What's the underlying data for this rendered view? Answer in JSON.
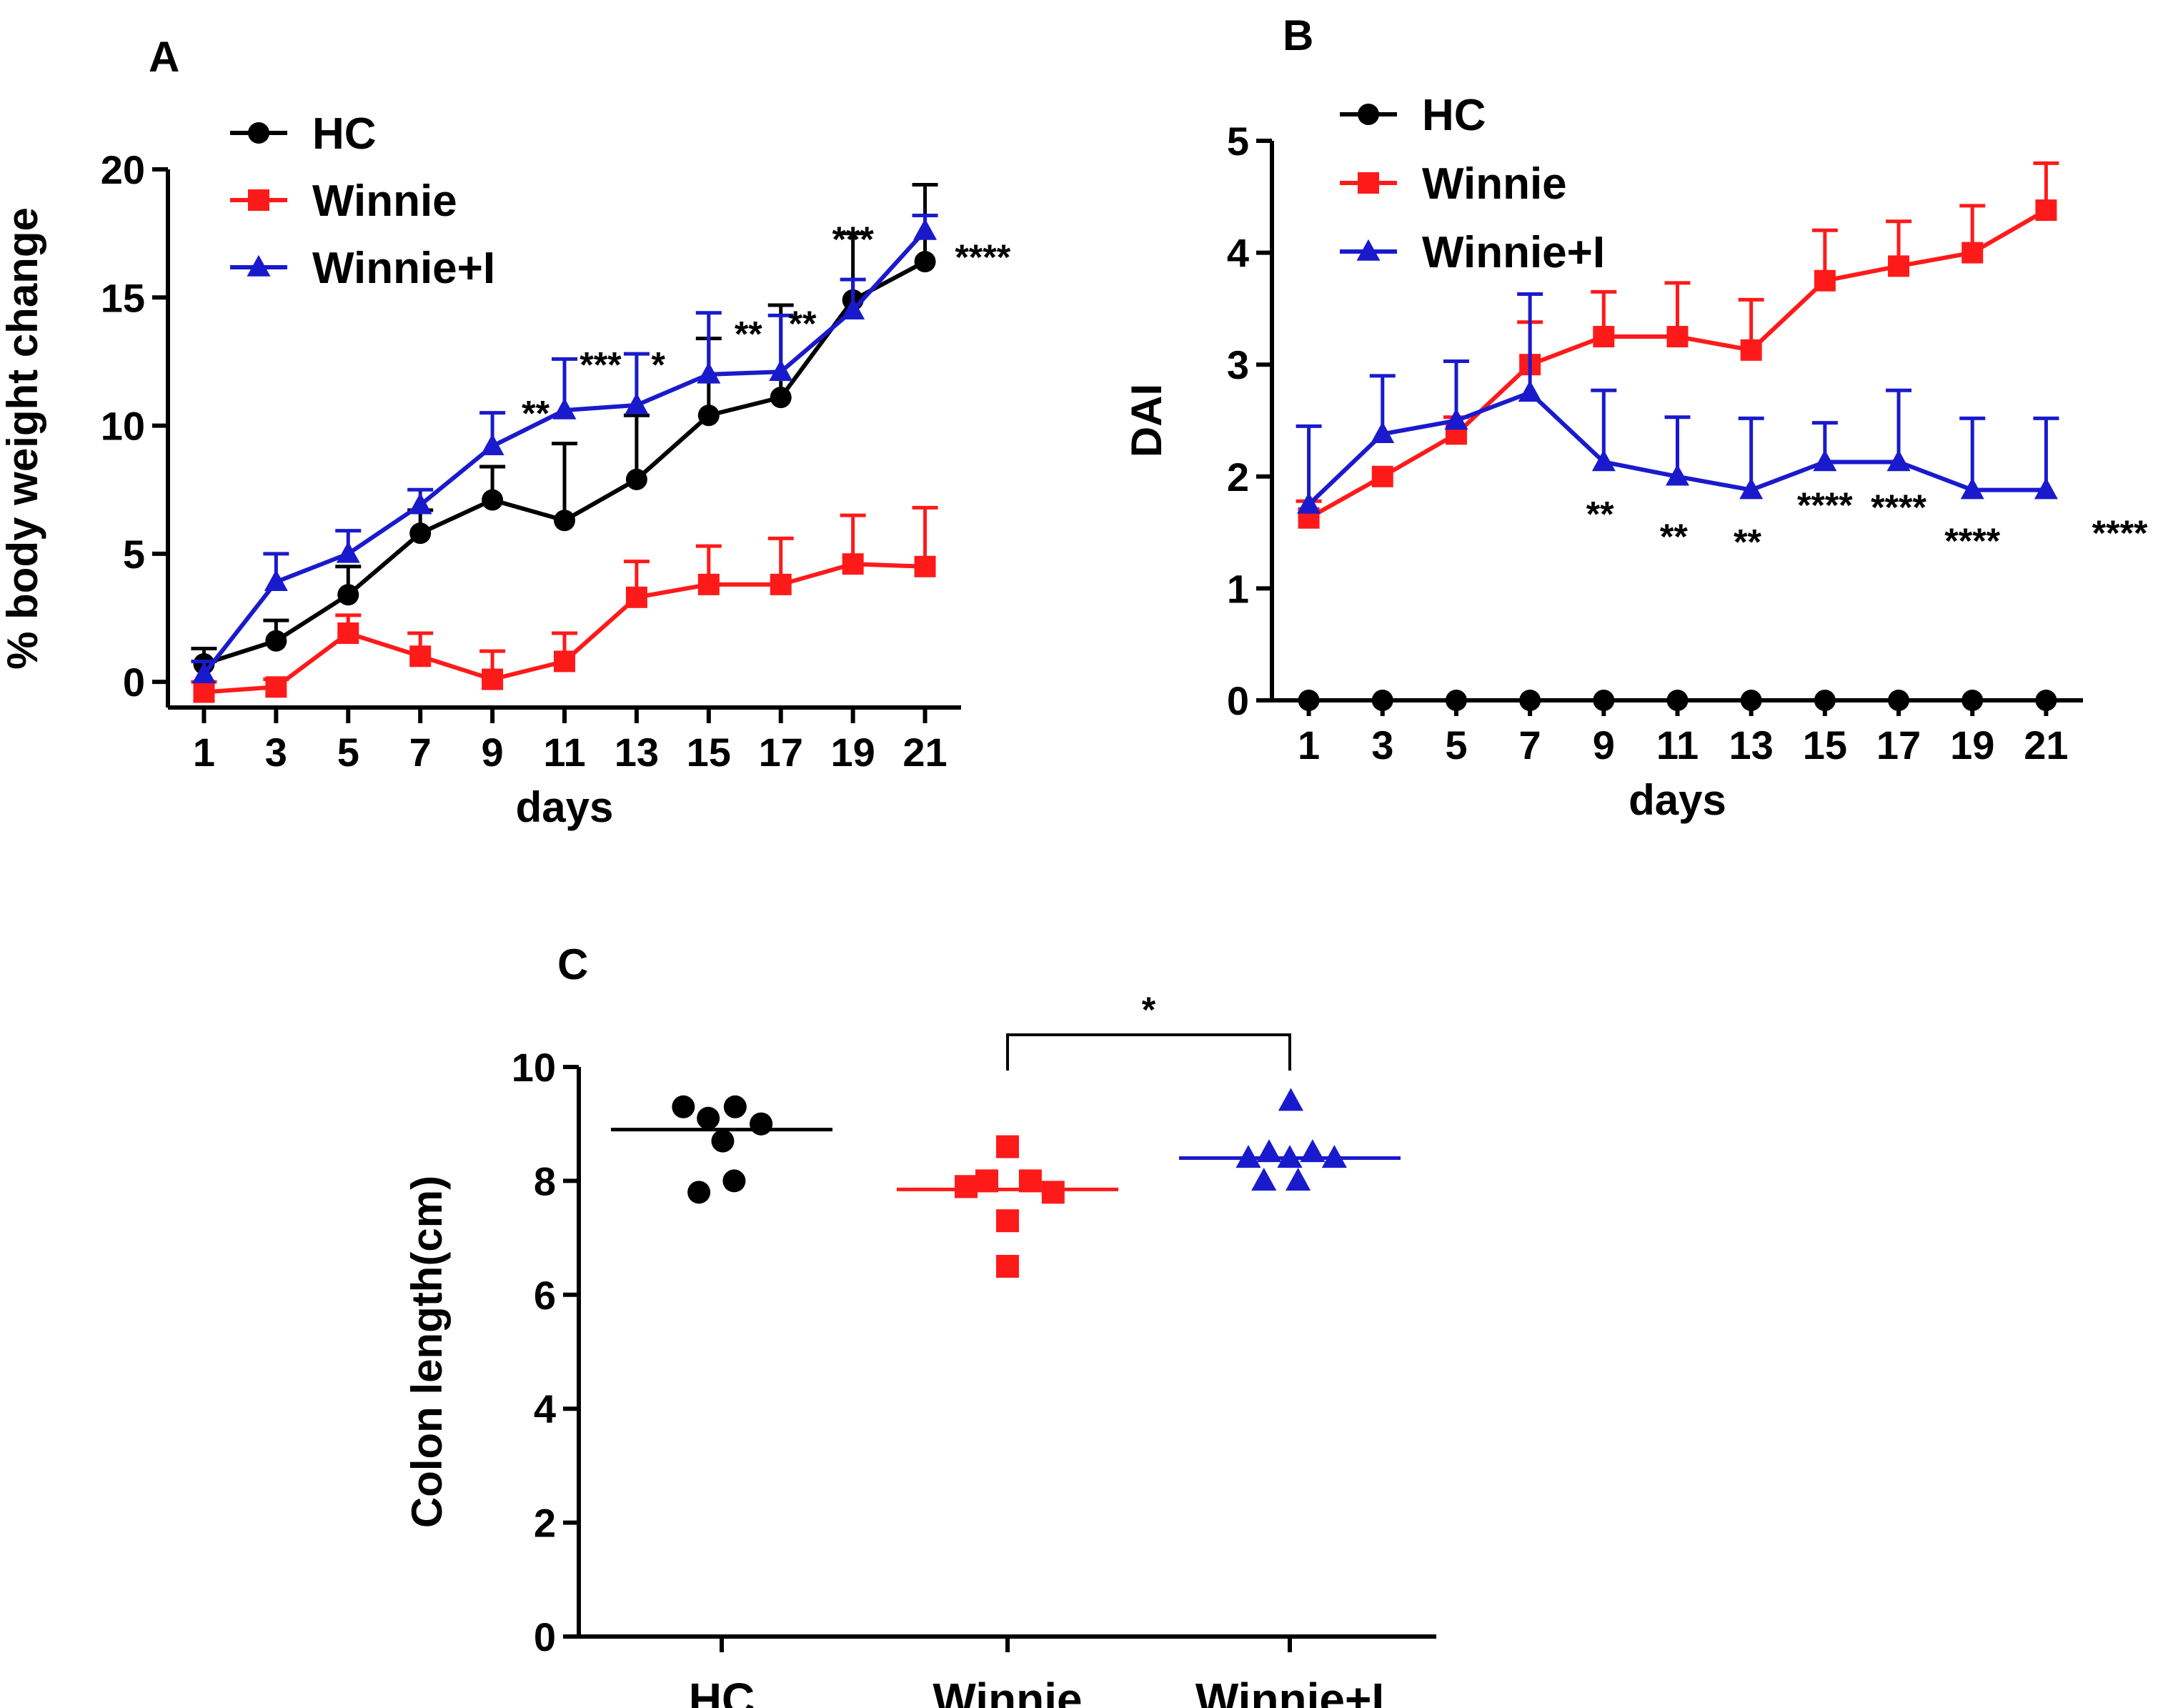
{
  "chart_data": [
    {
      "panel": "A",
      "type": "line",
      "xlabel": "days",
      "ylabel": "% body weight change",
      "x": [
        1,
        3,
        5,
        7,
        9,
        11,
        13,
        15,
        17,
        19,
        21
      ],
      "xticks": [
        "1",
        "3",
        "5",
        "7",
        "9",
        "11",
        "13",
        "15",
        "17",
        "19",
        "21"
      ],
      "xlim": [
        0,
        22
      ],
      "ylim": [
        -1,
        20
      ],
      "yticks": [
        "0",
        "5",
        "10",
        "15",
        "20"
      ],
      "series": [
        {
          "name": "HC",
          "color": "#000000",
          "marker": "circle",
          "values": [
            0.7,
            1.6,
            3.4,
            5.8,
            7.1,
            6.3,
            7.9,
            10.4,
            11.1,
            14.9,
            16.4
          ],
          "errors": [
            0.6,
            0.8,
            1.1,
            0.9,
            1.3,
            3.0,
            2.5,
            3.0,
            3.6,
            2.6,
            3.0
          ]
        },
        {
          "name": "Winnie",
          "color": "#ff1a1a",
          "marker": "square",
          "values": [
            -0.4,
            -0.2,
            1.9,
            1.0,
            0.1,
            0.8,
            3.3,
            3.8,
            3.8,
            4.6,
            4.5
          ],
          "errors": [
            0.4,
            0.3,
            0.7,
            0.9,
            1.1,
            1.1,
            1.4,
            1.5,
            1.8,
            1.9,
            2.3
          ]
        },
        {
          "name": "Winnie+I",
          "color": "#1a1acd",
          "marker": "triangle",
          "values": [
            0.3,
            3.9,
            5.0,
            6.9,
            9.2,
            10.6,
            10.8,
            12.0,
            12.1,
            14.5,
            17.6
          ],
          "errors": [
            0.5,
            1.1,
            0.9,
            0.6,
            1.3,
            2.0,
            2.0,
            2.4,
            2.2,
            1.2,
            0.6
          ]
        }
      ],
      "annotations": [
        {
          "x": 10.2,
          "y": 10.5,
          "text": "**"
        },
        {
          "x": 12.0,
          "y": 12.4,
          "text": "***"
        },
        {
          "x": 13.6,
          "y": 12.4,
          "text": "*"
        },
        {
          "x": 16.1,
          "y": 13.6,
          "text": "**"
        },
        {
          "x": 17.6,
          "y": 14.0,
          "text": "**"
        },
        {
          "x": 19.0,
          "y": 17.3,
          "text": "***"
        },
        {
          "x": 22.6,
          "y": 16.6,
          "text": "****"
        }
      ]
    },
    {
      "panel": "B",
      "type": "line",
      "xlabel": "days",
      "ylabel": "DAI",
      "x": [
        1,
        3,
        5,
        7,
        9,
        11,
        13,
        15,
        17,
        19,
        21
      ],
      "xticks": [
        "1",
        "3",
        "5",
        "7",
        "9",
        "11",
        "13",
        "15",
        "17",
        "19",
        "21"
      ],
      "xlim": [
        0,
        22
      ],
      "ylim": [
        0,
        5
      ],
      "yticks": [
        "0",
        "1",
        "2",
        "3",
        "4",
        "5"
      ],
      "series": [
        {
          "name": "HC",
          "color": "#000000",
          "marker": "circle",
          "values": [
            0,
            0,
            0,
            0,
            0,
            0,
            0,
            0,
            0,
            0,
            0
          ],
          "errors": [
            0,
            0,
            0,
            0,
            0,
            0,
            0,
            0,
            0,
            0,
            0
          ]
        },
        {
          "name": "Winnie",
          "color": "#ff1a1a",
          "marker": "square",
          "values": [
            1.63,
            2.0,
            2.38,
            3.0,
            3.25,
            3.25,
            3.13,
            3.75,
            3.88,
            4.0,
            4.38
          ],
          "errors": [
            0.15,
            0.0,
            0.15,
            0.38,
            0.4,
            0.48,
            0.45,
            0.45,
            0.4,
            0.42,
            0.42
          ]
        },
        {
          "name": "Winnie+I",
          "color": "#1a1acd",
          "marker": "triangle",
          "values": [
            1.75,
            2.38,
            2.5,
            2.75,
            2.13,
            2.0,
            1.88,
            2.13,
            2.13,
            1.88,
            1.88
          ],
          "errors": [
            0.7,
            0.52,
            0.53,
            0.88,
            0.64,
            0.53,
            0.64,
            0.35,
            0.64,
            0.64,
            0.64
          ]
        }
      ],
      "annotations": [
        {
          "x": 8.9,
          "y": 1.67,
          "text": "**"
        },
        {
          "x": 10.9,
          "y": 1.47,
          "text": "**"
        },
        {
          "x": 12.9,
          "y": 1.42,
          "text": "**"
        },
        {
          "x": 15.0,
          "y": 1.75,
          "text": "****"
        },
        {
          "x": 17.0,
          "y": 1.73,
          "text": "****"
        },
        {
          "x": 19.0,
          "y": 1.43,
          "text": "****"
        },
        {
          "x": 23.0,
          "y": 1.5,
          "text": "****"
        }
      ]
    },
    {
      "panel": "C",
      "type": "scatter",
      "xlabel": "",
      "ylabel": "Colon length(cm)",
      "categories": [
        "HC",
        "Winnie",
        "Winnie+I"
      ],
      "ylim": [
        0,
        10
      ],
      "yticks": [
        "0",
        "2",
        "4",
        "6",
        "8",
        "10"
      ],
      "series": [
        {
          "name": "HC",
          "color": "#000000",
          "marker": "circle",
          "mean": 8.9,
          "points": [
            9.3,
            9.1,
            9.3,
            9.0,
            8.7,
            7.8,
            8.0,
            9.0
          ],
          "offsets": [
            -0.37,
            -0.13,
            0.13,
            0.38,
            0.01,
            -0.22,
            0.12,
            0.38
          ]
        },
        {
          "name": "Winnie",
          "color": "#ff1a1a",
          "marker": "square",
          "mean": 7.85,
          "points": [
            7.9,
            8.0,
            8.6,
            8.0,
            7.8,
            7.3,
            6.5,
            7.9
          ],
          "offsets": [
            -0.4,
            -0.2,
            0.0,
            0.22,
            0.44,
            0.0,
            0.0,
            -0.4
          ]
        },
        {
          "name": "Winnie+I",
          "color": "#1a1acd",
          "marker": "triangle",
          "mean": 8.4,
          "points": [
            8.4,
            8.5,
            8.4,
            9.4,
            8.0,
            8.5,
            8.0,
            8.4
          ],
          "offsets": [
            -0.4,
            -0.2,
            0.0,
            0.01,
            0.08,
            0.22,
            -0.25,
            0.43
          ]
        }
      ],
      "comparison": {
        "from": "Winnie",
        "to": "Winnie+I",
        "text": "*"
      }
    }
  ]
}
